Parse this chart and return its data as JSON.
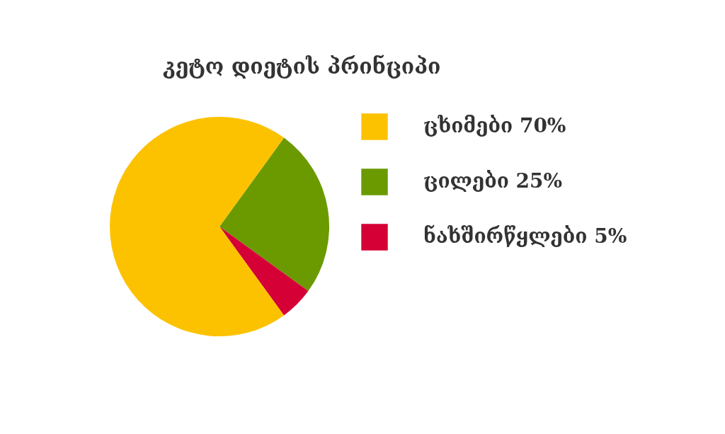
{
  "chart_data": {
    "type": "pie",
    "title": "კეტო დიეტის პრინციპი",
    "categories": [
      "ცხიმები",
      "ცილები",
      "ნახშირწყლები"
    ],
    "values": [
      70,
      25,
      5
    ],
    "value_labels": [
      "70%",
      "25%",
      "5%"
    ],
    "colors": [
      "#fcc200",
      "#6b9a00",
      "#d50036"
    ],
    "legend": "right"
  }
}
